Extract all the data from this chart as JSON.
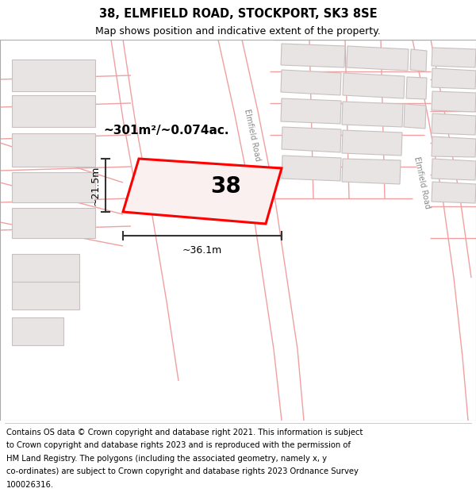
{
  "title_line1": "38, ELMFIELD ROAD, STOCKPORT, SK3 8SE",
  "title_line2": "Map shows position and indicative extent of the property.",
  "property_number": "38",
  "area_text": "~301m²/~0.074ac.",
  "width_label": "~36.1m",
  "height_label": "~21.5m",
  "road_label_top": "Elmfield Road",
  "road_label_bottom": "Elmfield Road",
  "map_bg": "#faf7f7",
  "plot_stroke": "#ff0000",
  "plot_fill": "#faf0f0",
  "building_fill": "#e8e4e4",
  "building_edge": "#c8c0c0",
  "road_line_color": "#f0a0a0",
  "road_fill": "#ffffff",
  "dim_line_color": "#333333",
  "title_fontsize": 10.5,
  "subtitle_fontsize": 9,
  "footer_fontsize": 7.2,
  "footer_lines": [
    "Contains OS data © Crown copyright and database right 2021. This information is subject",
    "to Crown copyright and database rights 2023 and is reproduced with the permission of",
    "HM Land Registry. The polygons (including the associated geometry, namely x, y",
    "co-ordinates) are subject to Crown copyright and database rights 2023 Ordnance Survey",
    "100026316."
  ]
}
